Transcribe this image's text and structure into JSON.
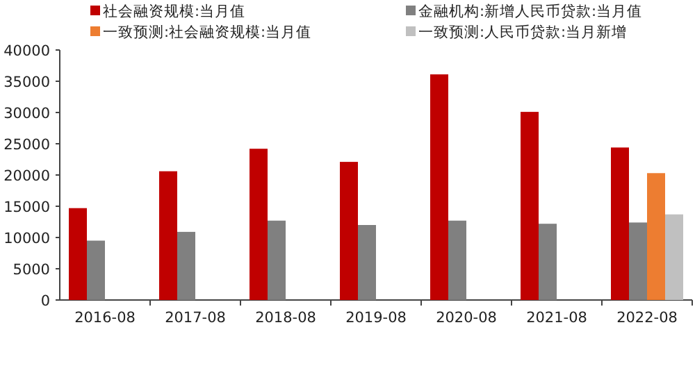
{
  "chart_data": {
    "type": "bar",
    "categories": [
      "2016-08",
      "2017-08",
      "2018-08",
      "2019-08",
      "2020-08",
      "2021-08",
      "2022-08"
    ],
    "series": [
      {
        "name": "社会融资规模:当月值",
        "color": "#c00000",
        "values": [
          14700,
          20600,
          24200,
          22100,
          36100,
          30100,
          24400
        ]
      },
      {
        "name": "金融机构:新增人民币贷款:当月值",
        "color": "#808080",
        "values": [
          9500,
          10900,
          12700,
          12000,
          12700,
          12200,
          12400
        ]
      },
      {
        "name": "一致预测:社会融资规模:当月值",
        "color": "#ed7d31",
        "values": [
          null,
          null,
          null,
          null,
          null,
          null,
          20300
        ]
      },
      {
        "name": "一致预测:人民币贷款:当月新增",
        "color": "#c0c0c0",
        "values": [
          null,
          null,
          null,
          null,
          null,
          null,
          13700
        ]
      }
    ],
    "ylim": [
      0,
      40000
    ],
    "yticks": [
      0,
      5000,
      10000,
      15000,
      20000,
      25000,
      30000,
      35000,
      40000
    ],
    "legend": "top",
    "grid": false
  }
}
